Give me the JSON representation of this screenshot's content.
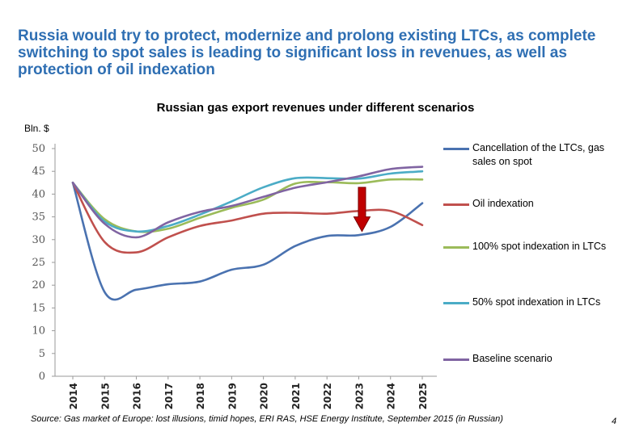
{
  "slide": {
    "headline": "Russia would try to protect, modernize and prolong existing LTCs, as complete switching to spot sales is leading to significant loss in revenues, as well as protection of oil indexation",
    "source": "Source: Gas market of Europe: lost illusions, timid hopes, ERI RAS, HSE Energy Institute, September 2015 (in Russian)",
    "page_number": "4"
  },
  "chart_data": {
    "type": "line",
    "title": "Russian gas export revenues under different scenarios",
    "ylabel": "Bln. $",
    "xlabel": "",
    "x": [
      "2014",
      "2015",
      "2016",
      "2017",
      "2018",
      "2019",
      "2020",
      "2021",
      "2022",
      "2023",
      "2024",
      "2025"
    ],
    "ylim": [
      0,
      50
    ],
    "yticks": [
      "0",
      "5",
      "10",
      "15",
      "20",
      "25",
      "30",
      "35",
      "40",
      "45",
      "50"
    ],
    "grid": false,
    "legend_position": "right",
    "series": [
      {
        "name": "Cancellation of the LTCs, gas sales on spot",
        "color": "#4a72b0",
        "values": [
          42.5,
          18.5,
          19.0,
          20.2,
          20.8,
          23.4,
          24.5,
          28.6,
          30.8,
          31.0,
          32.8,
          38.0
        ]
      },
      {
        "name": "Oil indexation",
        "color": "#c0504d",
        "values": [
          42.5,
          29.5,
          27.2,
          30.5,
          33.0,
          34.2,
          35.7,
          35.9,
          35.7,
          36.3,
          36.3,
          33.2
        ]
      },
      {
        "name": "100% spot indexation in LTCs",
        "color": "#9bbb59",
        "values": [
          42.5,
          34.5,
          31.8,
          32.4,
          34.8,
          37.0,
          38.8,
          42.3,
          42.6,
          42.4,
          43.2,
          43.2
        ]
      },
      {
        "name": "50% spot indexation in LTCs",
        "color": "#4bacc6",
        "values": [
          42.5,
          34.0,
          31.8,
          33.0,
          35.5,
          38.4,
          41.5,
          43.5,
          43.5,
          43.4,
          44.5,
          45.0
        ]
      },
      {
        "name": "Baseline scenario",
        "color": "#8064a2",
        "values": [
          42.5,
          33.5,
          30.5,
          33.8,
          36.1,
          37.4,
          39.4,
          41.4,
          42.6,
          43.9,
          45.5,
          46.0
        ]
      }
    ],
    "annotations": [
      {
        "type": "arrow",
        "direction": "down",
        "color": "#c00000",
        "x": "2023",
        "from": 41.5,
        "to": 31.8
      }
    ]
  }
}
